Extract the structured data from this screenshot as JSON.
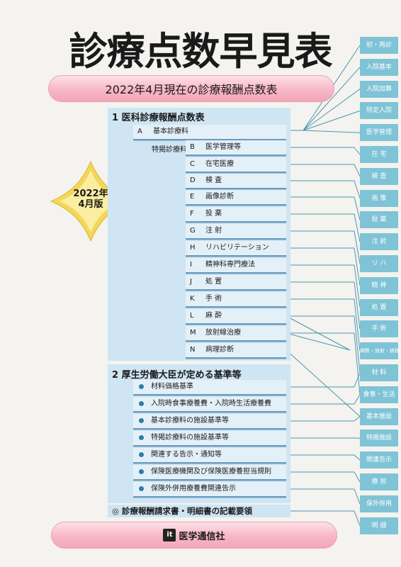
{
  "title": "診療点数早見表",
  "subtitle": "2022年4月現在の診療報酬点数表",
  "edition": {
    "line1": "2022年",
    "line2": "4月版"
  },
  "section1": {
    "heading": "1 医科診療報酬点数表",
    "tokuyou_label": "特掲診療料",
    "items": [
      {
        "code": "A",
        "label": "基本診療料"
      },
      {
        "code": "B",
        "label": "医学管理等"
      },
      {
        "code": "C",
        "label": "在宅医療"
      },
      {
        "code": "D",
        "label": "検 査"
      },
      {
        "code": "E",
        "label": "画像診断"
      },
      {
        "code": "F",
        "label": "投 薬"
      },
      {
        "code": "G",
        "label": "注 射"
      },
      {
        "code": "H",
        "label": "リハビリテーション"
      },
      {
        "code": "I",
        "label": "精神科専門療法"
      },
      {
        "code": "J",
        "label": "処 置"
      },
      {
        "code": "K",
        "label": "手 術"
      },
      {
        "code": "L",
        "label": "麻 酔"
      },
      {
        "code": "M",
        "label": "放射線治療"
      },
      {
        "code": "N",
        "label": "病理診断"
      }
    ]
  },
  "section2": {
    "heading": "2 厚生労働大臣が定める基準等",
    "items": [
      "材料価格基準",
      "入院時食事療養費・入院時生活療養費",
      "基本診療料の施設基準等",
      "特掲診療料の施設基準等",
      "関連する告示・通知等",
      "保険医療機関及び保険医療養担当規則",
      "保険外併用療養費関連告示"
    ]
  },
  "section3": {
    "heading": "◎ 診療報酬請求書・明細書の記載要領"
  },
  "publisher": {
    "logo": "it",
    "name": "医学通信社"
  },
  "tabs": [
    "初・再診",
    "入院基本",
    "入院加算",
    "特定入院",
    "医学管理",
    "在 宅",
    "検 査",
    "画 像",
    "投 薬",
    "注 射",
    "リ ハ",
    "精 神",
    "処 置",
    "手 術",
    "麻酔・放射・病理",
    "材 料",
    "食事・生活",
    "基本施設",
    "特掲施設",
    "関連告示",
    "療 担",
    "保外併用",
    "明 細"
  ],
  "colors": {
    "panel": "#cfe5f3",
    "tab": "#7fc3d6",
    "pill": "#f7b7c6",
    "burst": "#f3d75a"
  }
}
